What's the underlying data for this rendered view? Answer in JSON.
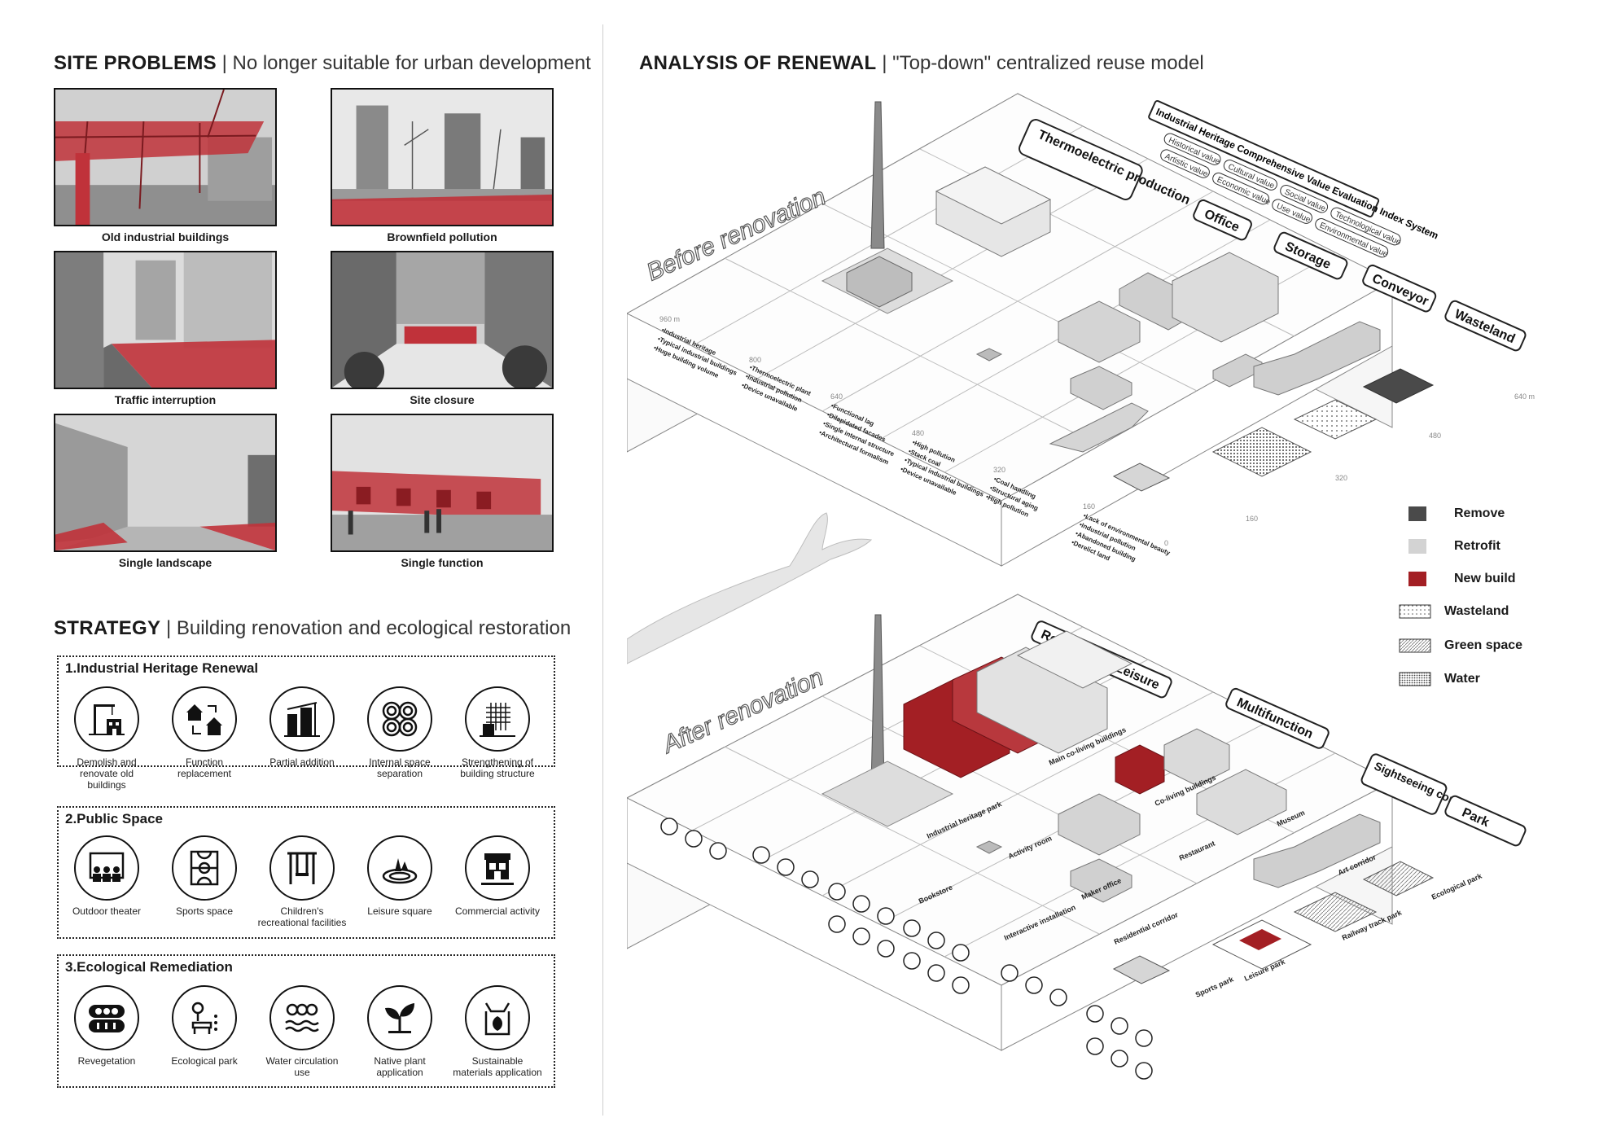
{
  "site_problems": {
    "title": "SITE PROBLEMS",
    "subtitle": "| No longer suitable for urban development",
    "photos": [
      {
        "caption": "Old industrial buildings"
      },
      {
        "caption": "Brownfield pollution"
      },
      {
        "caption": "Traffic interruption"
      },
      {
        "caption": "Site closure"
      },
      {
        "caption": "Single landscape"
      },
      {
        "caption": "Single function"
      }
    ]
  },
  "strategy": {
    "title": "STRATEGY",
    "subtitle": "| Building renovation and ecological restoration",
    "groups": [
      {
        "title": "1.Industrial Heritage Renewal",
        "items": [
          "Demolish and renovate old buildings",
          "Function replacement",
          "Partial addition",
          "Internal space separation",
          "Strengthening of building structure"
        ]
      },
      {
        "title": "2.Public Space",
        "items": [
          "Outdoor theater",
          "Sports space",
          "Children's recreational facilities",
          "Leisure square",
          "Commercial activity"
        ]
      },
      {
        "title": "3.Ecological Remediation",
        "items": [
          "Revegetation",
          "Ecological park",
          "Water circulation use",
          "Native plant application",
          "Sustainable materials application"
        ]
      }
    ]
  },
  "analysis": {
    "title": "ANALYSIS OF RENEWAL",
    "subtitle": "| \"Top-down\" centralized reuse model",
    "index_system": "Industrial Heritage Comprehensive Value Evaluation Index System",
    "values": [
      "Historical value",
      "Artistic value",
      "Cultural value",
      "Economic value",
      "Social value",
      "Use value",
      "Technological value",
      "Environmental value"
    ],
    "before_label": "Before renovation",
    "after_label": "After renovation",
    "before_zones": [
      "Thermoelectric production",
      "Office",
      "Storage",
      "Conveyor",
      "Wasteland"
    ],
    "after_zones": [
      "Residence & Leisure",
      "Multifunction",
      "Sightseeing corridor",
      "Park"
    ],
    "scale_top": [
      "960 m",
      "800",
      "640",
      "480",
      "320",
      "160",
      "0"
    ],
    "scale_right": [
      "640 m",
      "480",
      "320",
      "160"
    ],
    "problem_lists": [
      [
        "•Industrial heritage",
        "•Typical industrial buildings",
        "•Huge building volume"
      ],
      [
        "•Thermoelectric plant",
        "•Industrial pollution",
        "•Device unavailable"
      ],
      [
        "•Functional lag",
        "•Dilapidated facades",
        "•Single internal structure",
        "•Architectural formalism"
      ],
      [
        "•High pollution",
        "•Stack coal",
        "•Typical industrial buildings",
        "•Device unavailable"
      ],
      [
        "•Coal handling",
        "•Structural aging",
        "•High pollution"
      ],
      [
        "•Lack of environmental beauty",
        "•Industrial pollution",
        "•Abandoned building",
        "•Derelict land"
      ]
    ],
    "after_labels": [
      "Industrial heritage park",
      "Main co-living buildings",
      "Co-living buildings",
      "Museum",
      "Activity room",
      "Bookstore",
      "Restaurant",
      "Maker office",
      "Interactive installation",
      "Residential corridor",
      "Art corridor",
      "Leisure park",
      "Railway track park",
      "Ecological park",
      "Sports park"
    ]
  },
  "legend": [
    {
      "label": "Remove",
      "color": "#4a4a4a"
    },
    {
      "label": "Retrofit",
      "color": "#d3d3d3"
    },
    {
      "label": "New build",
      "color": "#a31f24"
    },
    {
      "label": "Wasteland",
      "pattern": "dots-sparse"
    },
    {
      "label": "Green space",
      "pattern": "hatch"
    },
    {
      "label": "Water",
      "pattern": "dots-dense"
    }
  ],
  "colors": {
    "accent_red": "#a31f24",
    "photo_red": "#c0323a",
    "line_gray": "#9a9a9a"
  }
}
